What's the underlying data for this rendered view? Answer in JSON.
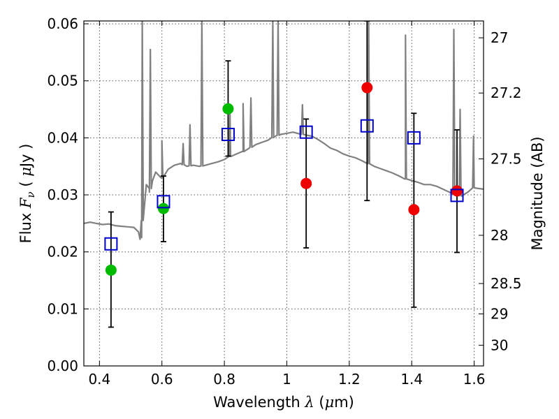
{
  "chart_data": {
    "type": "scatter",
    "title": "",
    "xlabel": {
      "prefix": "Wavelength  ",
      "symbol": "λ",
      "unit_open": " (",
      "unit_mu": "μ",
      "unit_rest": "m)"
    },
    "ylabel": {
      "prefix": "Flux  ",
      "symbol": "F",
      "subscript": "ν",
      "unit_open": "  ( ",
      "unit_mu": "μ",
      "unit_rest": "Jy )"
    },
    "y2label": "Magnitude (AB)",
    "xlim": [
      0.35,
      1.63
    ],
    "ylim": [
      0.0,
      0.0605
    ],
    "grid": true,
    "x_ticks": [
      {
        "v": 0.4,
        "label": "0.4"
      },
      {
        "v": 0.6,
        "label": "0.6"
      },
      {
        "v": 0.8,
        "label": "0.8"
      },
      {
        "v": 1.0,
        "label": "1"
      },
      {
        "v": 1.2,
        "label": "1.2"
      },
      {
        "v": 1.4,
        "label": "1.4"
      },
      {
        "v": 1.6,
        "label": "1.6"
      }
    ],
    "y_ticks": [
      {
        "v": 0.0,
        "label": "0.00"
      },
      {
        "v": 0.01,
        "label": "0.01"
      },
      {
        "v": 0.02,
        "label": "0.02"
      },
      {
        "v": 0.03,
        "label": "0.03"
      },
      {
        "v": 0.04,
        "label": "0.04"
      },
      {
        "v": 0.05,
        "label": "0.05"
      },
      {
        "v": 0.06,
        "label": "0.06"
      }
    ],
    "y2_ticks": [
      {
        "mag": 27,
        "label": "27"
      },
      {
        "mag": 27.2,
        "label": "27.2"
      },
      {
        "mag": 27.5,
        "label": "27.5"
      },
      {
        "mag": 28,
        "label": "28"
      },
      {
        "mag": 28.5,
        "label": "28.5"
      },
      {
        "mag": 29,
        "label": "29"
      },
      {
        "mag": 30,
        "label": "30"
      }
    ],
    "series": [
      {
        "kind": "model_spectrum",
        "color": "#808080",
        "x": [
          0.35,
          0.37,
          0.39,
          0.41,
          0.43,
          0.45,
          0.47,
          0.49,
          0.51,
          0.525,
          0.53,
          0.535,
          0.54,
          0.55,
          0.56,
          0.57,
          0.58,
          0.6,
          0.62,
          0.64,
          0.66,
          0.68,
          0.7,
          0.72,
          0.74,
          0.76,
          0.78,
          0.8,
          0.82,
          0.84,
          0.86,
          0.88,
          0.9,
          0.92,
          0.94,
          0.96,
          0.98,
          1.0,
          1.02,
          1.04,
          1.06,
          1.08,
          1.1,
          1.12,
          1.14,
          1.16,
          1.18,
          1.2,
          1.22,
          1.24,
          1.26,
          1.28,
          1.3,
          1.32,
          1.34,
          1.36,
          1.38,
          1.4,
          1.42,
          1.44,
          1.46,
          1.48,
          1.5,
          1.52,
          1.54,
          1.56,
          1.58,
          1.6,
          1.63
        ],
        "y": [
          0.025,
          0.0252,
          0.025,
          0.0248,
          0.0249,
          0.0246,
          0.0245,
          0.0244,
          0.0243,
          0.0235,
          0.0222,
          0.0225,
          0.03,
          0.0318,
          0.0305,
          0.0325,
          0.034,
          0.033,
          0.0345,
          0.0352,
          0.0355,
          0.035,
          0.0352,
          0.035,
          0.0352,
          0.0355,
          0.0358,
          0.0362,
          0.0368,
          0.0372,
          0.0376,
          0.0382,
          0.0388,
          0.0392,
          0.0396,
          0.0402,
          0.0406,
          0.0408,
          0.041,
          0.0407,
          0.0405,
          0.0403,
          0.0397,
          0.039,
          0.0382,
          0.0378,
          0.0372,
          0.0368,
          0.0365,
          0.036,
          0.0355,
          0.035,
          0.0346,
          0.0342,
          0.0338,
          0.0333,
          0.0328,
          0.0325,
          0.0322,
          0.0318,
          0.0318,
          0.0315,
          0.031,
          0.0305,
          0.03,
          0.0298,
          0.0305,
          0.0313,
          0.031
        ],
        "emission_lines": [
          {
            "x": 0.537,
            "peak": 0.0605
          },
          {
            "x": 0.563,
            "peak": 0.0555
          },
          {
            "x": 0.6,
            "peak": 0.0395
          },
          {
            "x": 0.668,
            "peak": 0.039
          },
          {
            "x": 0.69,
            "peak": 0.0423
          },
          {
            "x": 0.728,
            "peak": 0.0605
          },
          {
            "x": 0.818,
            "peak": 0.0445
          },
          {
            "x": 0.86,
            "peak": 0.046
          },
          {
            "x": 0.885,
            "peak": 0.047
          },
          {
            "x": 0.955,
            "peak": 0.0605
          },
          {
            "x": 0.972,
            "peak": 0.0605
          },
          {
            "x": 1.05,
            "peak": 0.0458
          },
          {
            "x": 1.262,
            "peak": 0.0605
          },
          {
            "x": 1.38,
            "peak": 0.058
          },
          {
            "x": 1.535,
            "peak": 0.059
          },
          {
            "x": 1.555,
            "peak": 0.045
          },
          {
            "x": 1.598,
            "peak": 0.0403
          }
        ]
      },
      {
        "kind": "observed_error_bars",
        "color": "#000000",
        "points": [
          {
            "x": 0.437,
            "low": 0.0068,
            "high": 0.027
          },
          {
            "x": 0.605,
            "low": 0.0218,
            "high": 0.0333
          },
          {
            "x": 0.812,
            "low": 0.0368,
            "high": 0.0535
          },
          {
            "x": 1.062,
            "low": 0.0207,
            "high": 0.0433
          },
          {
            "x": 1.257,
            "low": 0.029,
            "high": 0.0605
          },
          {
            "x": 1.407,
            "low": 0.0103,
            "high": 0.0443
          },
          {
            "x": 1.545,
            "low": 0.0199,
            "high": 0.0414
          }
        ]
      },
      {
        "kind": "observed_points",
        "color": "#00bb00",
        "points": [
          {
            "x": 0.437,
            "y": 0.0168
          },
          {
            "x": 0.605,
            "y": 0.0276
          },
          {
            "x": 0.812,
            "y": 0.0451
          }
        ]
      },
      {
        "kind": "observed_points",
        "color": "#ee0000",
        "points": [
          {
            "x": 1.062,
            "y": 0.032
          },
          {
            "x": 1.257,
            "y": 0.0488
          },
          {
            "x": 1.407,
            "y": 0.0274
          },
          {
            "x": 1.545,
            "y": 0.0307
          }
        ]
      },
      {
        "kind": "model_photometry",
        "color": "#0000cc",
        "points": [
          {
            "x": 0.437,
            "y": 0.0214
          },
          {
            "x": 0.605,
            "y": 0.0288
          },
          {
            "x": 0.812,
            "y": 0.0406
          },
          {
            "x": 1.062,
            "y": 0.041
          },
          {
            "x": 1.257,
            "y": 0.0421
          },
          {
            "x": 1.407,
            "y": 0.04
          },
          {
            "x": 1.545,
            "y": 0.0299
          }
        ]
      }
    ]
  }
}
